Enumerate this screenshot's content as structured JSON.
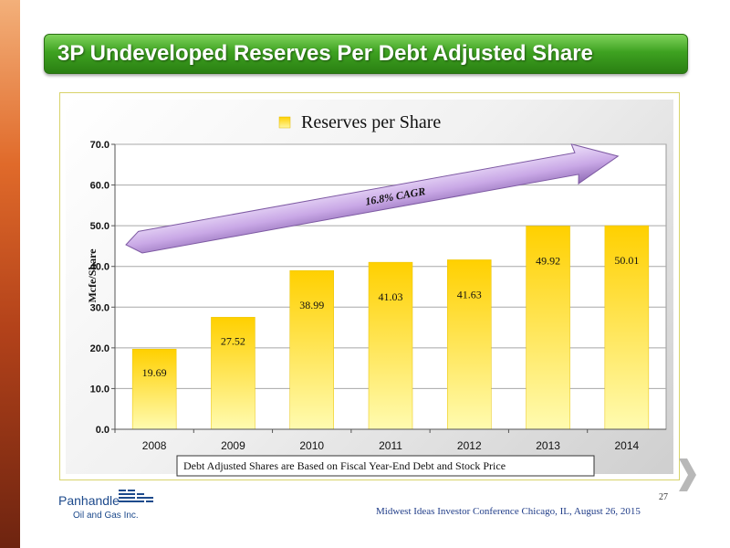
{
  "slide": {
    "title": "3P Undeveloped Reserves Per Debt Adjusted Share",
    "footer": "Midwest Ideas Investor  Conference Chicago, IL, August 26, 2015",
    "page_number": "27",
    "logo": {
      "line1": "Panhandle",
      "line2": "Oil and Gas Inc."
    }
  },
  "colors": {
    "title_bar": "#3ea221",
    "bar_top": "#ffd000",
    "bar_bottom": "#fffbb0",
    "arrow": "#c9a8e6",
    "footer_text": "#1f3c88"
  },
  "chart_data": {
    "type": "bar",
    "legend": "Reserves per Share",
    "legend_position": "top",
    "categories": [
      "2008",
      "2009",
      "2010",
      "2011",
      "2012",
      "2013",
      "2014"
    ],
    "values": [
      19.69,
      27.52,
      38.99,
      41.03,
      41.63,
      49.92,
      50.01
    ],
    "value_labels": [
      "19.69",
      "27.52",
      "38.99",
      "41.03",
      "41.63",
      "49.92",
      "50.01"
    ],
    "ylabel": "Mcfe/Share",
    "ylim": [
      0,
      70
    ],
    "yticks": [
      "0.0",
      "10.0",
      "20.0",
      "30.0",
      "40.0",
      "50.0",
      "60.0",
      "70.0"
    ],
    "grid": true,
    "annotation": "16.8% CAGR",
    "note": "Debt Adjusted Shares are Based on Fiscal Year-End Debt and Stock Price"
  }
}
